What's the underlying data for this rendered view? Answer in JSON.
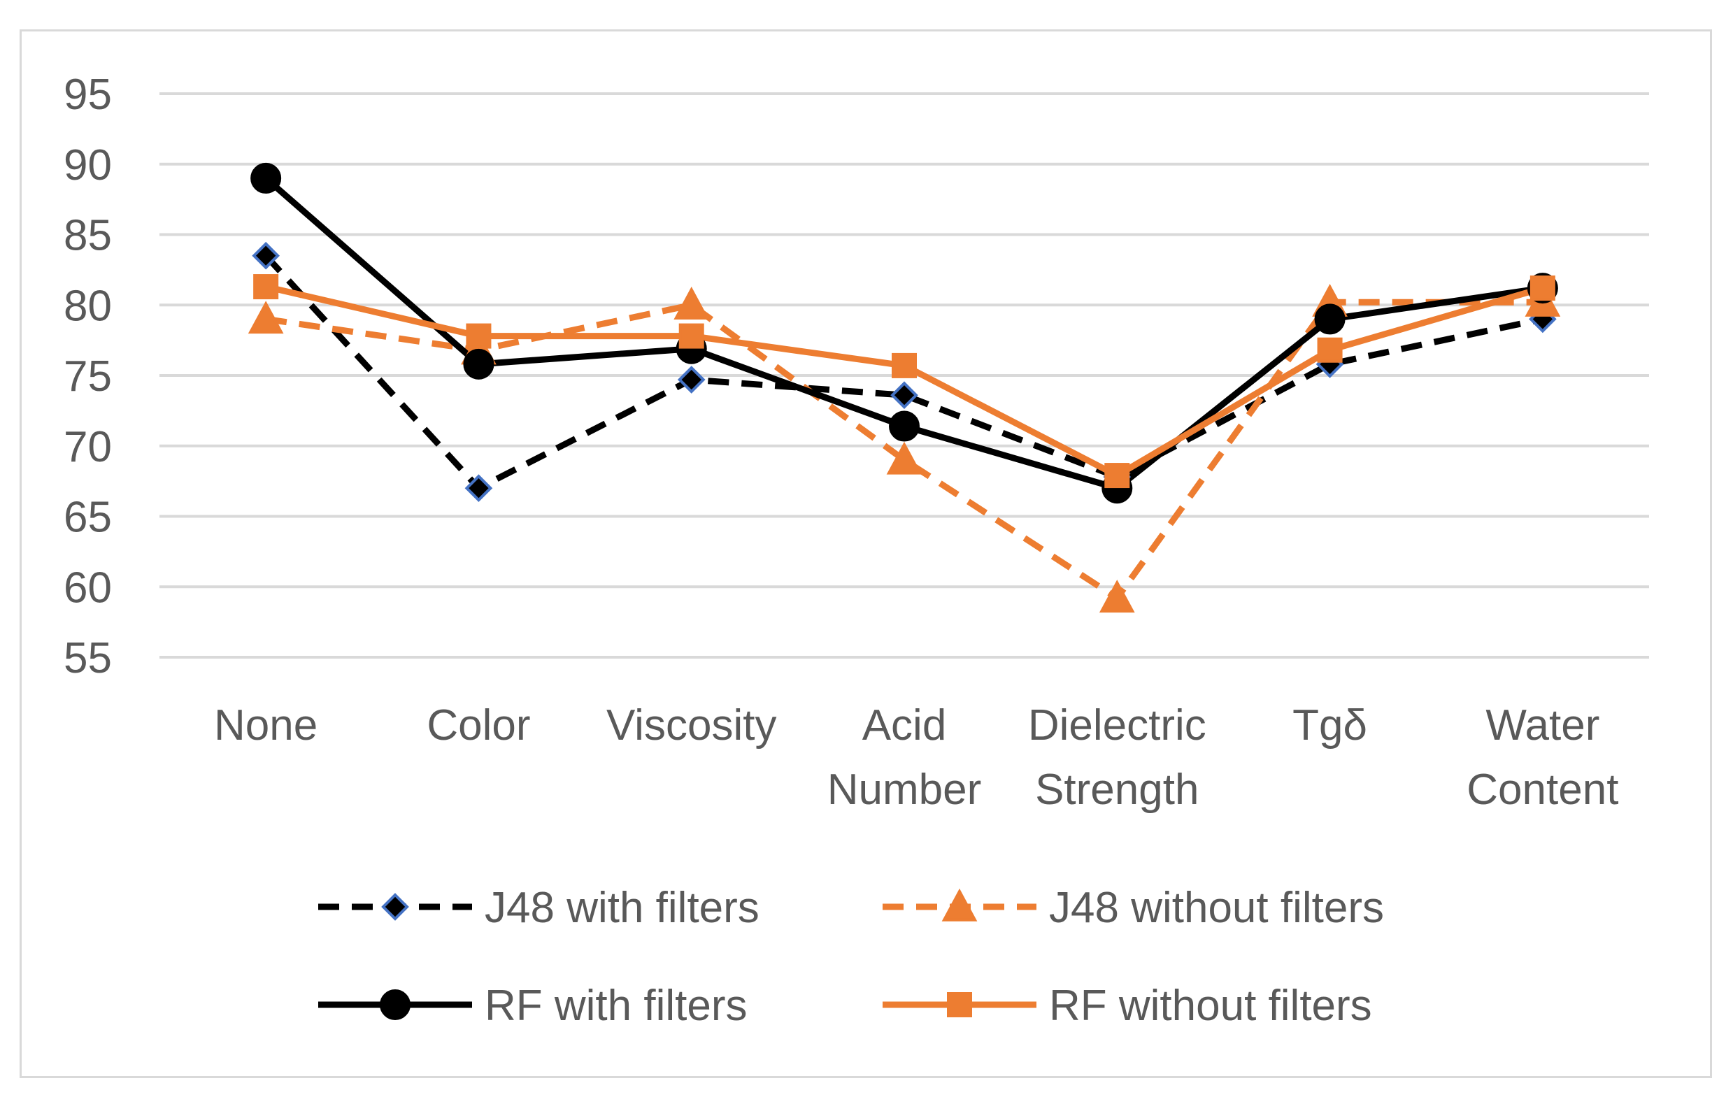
{
  "chart_data": {
    "type": "line",
    "title": "",
    "xlabel": "",
    "ylabel": "",
    "categories": [
      [
        "None"
      ],
      [
        "Color"
      ],
      [
        "Viscosity"
      ],
      [
        "Acid",
        "Number"
      ],
      [
        "Dielectric",
        "Strength"
      ],
      [
        "Tgδ"
      ],
      [
        "Water",
        "Content"
      ]
    ],
    "ylim": [
      55,
      95
    ],
    "yticks": [
      "55",
      "60",
      "65",
      "70",
      "75",
      "80",
      "85",
      "90",
      "95"
    ],
    "ytick_values": [
      55,
      60,
      65,
      70,
      75,
      80,
      85,
      90,
      95
    ],
    "grid": true,
    "legend_position": "bottom",
    "series": [
      {
        "name": "J48 with filters",
        "values": [
          83.5,
          67.0,
          74.7,
          73.6,
          67.8,
          75.8,
          79.0
        ],
        "color": "#000000",
        "marker": "diamond",
        "marker_fill": "#000000",
        "marker_edge": "#4472c4",
        "dashed": true
      },
      {
        "name": "J48 without filters",
        "values": [
          79.0,
          76.8,
          80.0,
          69.0,
          59.2,
          80.2,
          80.2
        ],
        "color": "#ed7d31",
        "marker": "triangle",
        "marker_fill": "#ed7d31",
        "marker_edge": "#ed7d31",
        "dashed": true
      },
      {
        "name": "RF with filters",
        "values": [
          89.0,
          75.8,
          76.9,
          71.4,
          67.0,
          79.0,
          81.2
        ],
        "color": "#000000",
        "marker": "circle",
        "marker_fill": "#000000",
        "marker_edge": "#000000",
        "dashed": false
      },
      {
        "name": "RF without filters",
        "values": [
          81.3,
          77.8,
          77.8,
          75.7,
          67.9,
          76.8,
          81.2
        ],
        "color": "#ed7d31",
        "marker": "square",
        "marker_fill": "#ed7d31",
        "marker_edge": "#ed7d31",
        "dashed": false
      }
    ]
  }
}
